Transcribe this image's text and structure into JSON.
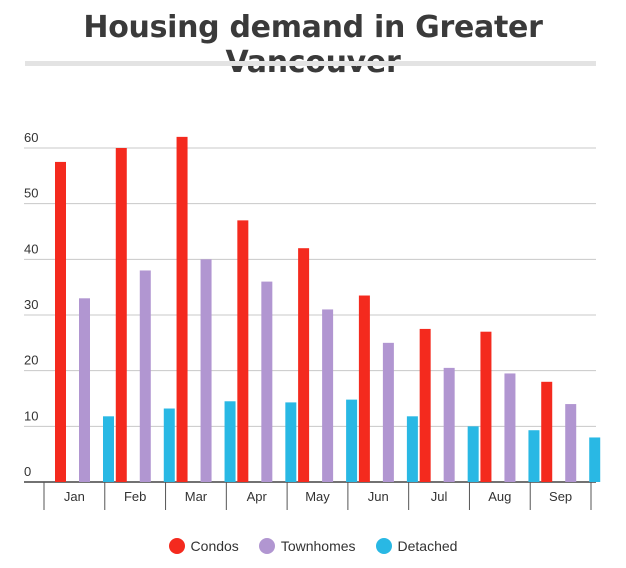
{
  "chart_data": {
    "type": "bar",
    "title": "Housing demand in Greater Vancouver",
    "categories": [
      "Jan",
      "Feb",
      "Mar",
      "Apr",
      "May",
      "Jun",
      "Jul",
      "Aug",
      "Sep"
    ],
    "series": [
      {
        "name": "Condos",
        "color": "#f42a1e",
        "values": [
          57.5,
          60,
          62,
          47,
          42,
          33.5,
          27.5,
          27,
          18
        ]
      },
      {
        "name": "Townhomes",
        "color": "#b196d1",
        "values": [
          33,
          38,
          40,
          36,
          31,
          25,
          20.5,
          19.5,
          14
        ]
      },
      {
        "name": "Detached",
        "color": "#29b8e4",
        "values": [
          11.8,
          13.2,
          14.5,
          14.3,
          14.8,
          11.8,
          10,
          9.3,
          8
        ]
      }
    ],
    "yticks": [
      0,
      10,
      20,
      30,
      40,
      50,
      60
    ],
    "ylim": [
      0,
      60
    ],
    "xlabel": "",
    "ylabel": "",
    "grid": true,
    "legend_position": "bottom"
  }
}
